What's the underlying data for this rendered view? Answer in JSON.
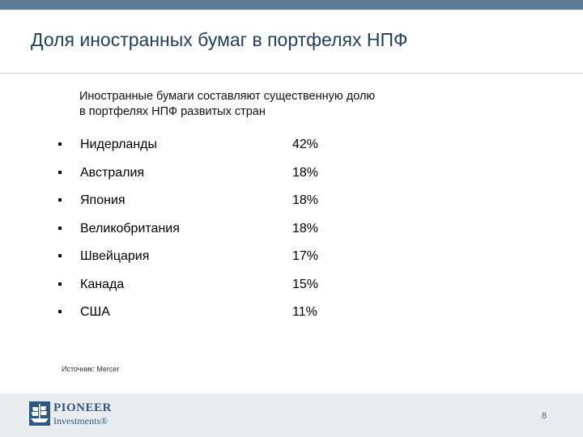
{
  "slide": {
    "title": "Доля иностранных бумаг в портфелях НПФ",
    "subtitle_line1": "Иностранные бумаги составляют существенную долю",
    "subtitle_line2": "в портфелях НПФ развитых стран",
    "items": [
      {
        "country": "Нидерланды",
        "value": "42%"
      },
      {
        "country": "Австралия",
        "value": "18%"
      },
      {
        "country": "Япония",
        "value": "18%"
      },
      {
        "country": "Великобритания",
        "value": "18%"
      },
      {
        "country": "Швейцария",
        "value": "17%"
      },
      {
        "country": "Канада",
        "value": "15%"
      },
      {
        "country": "США",
        "value": "11%"
      }
    ],
    "source": "Источник: Mercer",
    "page_number": "8"
  },
  "logo": {
    "word1": "PIONEER",
    "word2": "Investments®",
    "icon": "ship-icon"
  },
  "colors": {
    "top_bar": "#5e7c91",
    "title": "#1f3f5b",
    "footer": "#e9edf0",
    "logo": "#2e5680"
  }
}
